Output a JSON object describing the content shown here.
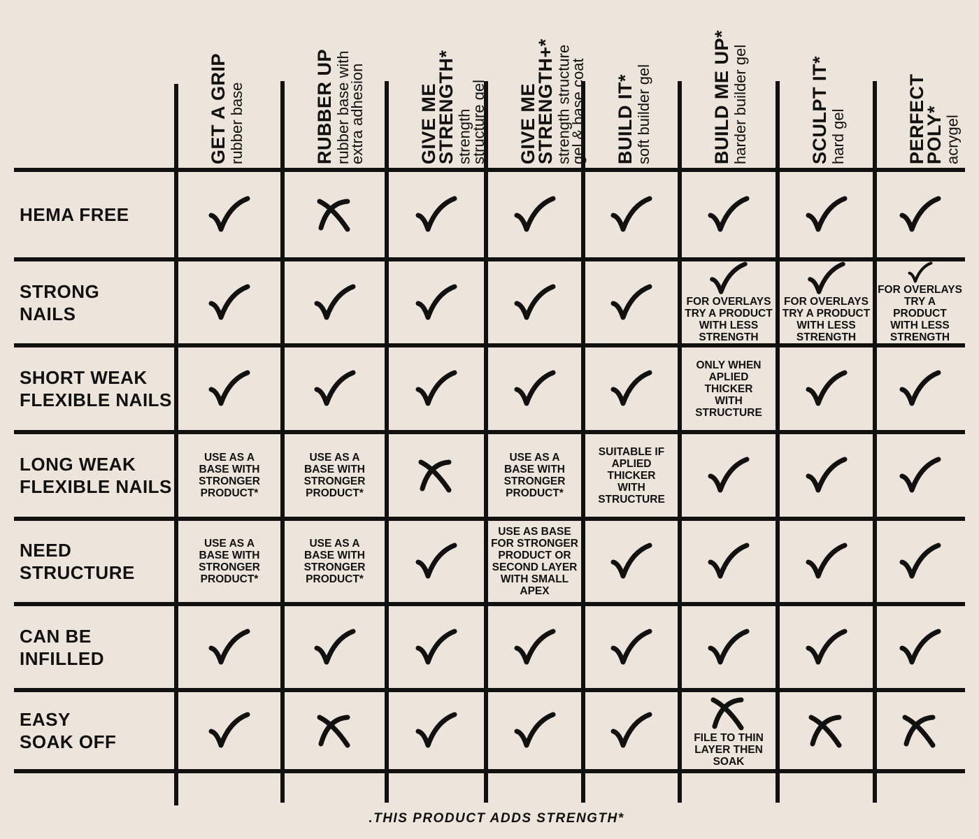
{
  "columns": [
    {
      "name": [
        "GET A GRIP"
      ],
      "description": [
        "rubber base"
      ]
    },
    {
      "name": [
        "RUBBER UP"
      ],
      "description": [
        "rubber base with",
        "extra adhesion"
      ]
    },
    {
      "name": [
        "GIVE ME",
        "STRENGTH*"
      ],
      "description": [
        "strength",
        "structure gel"
      ]
    },
    {
      "name": [
        "GIVE ME",
        "STRENGTH+*"
      ],
      "description": [
        "strength structure",
        "gel & base coat"
      ]
    },
    {
      "name": [
        "BUILD IT*"
      ],
      "description": [
        "soft builder gel"
      ]
    },
    {
      "name": [
        "BUILD ME UP*"
      ],
      "description": [
        "harder builder gel"
      ]
    },
    {
      "name": [
        "SCULPT IT*"
      ],
      "description": [
        "hard gel"
      ]
    },
    {
      "name": [
        "PERFECT",
        "POLY*"
      ],
      "description": [
        "acrygel"
      ]
    }
  ],
  "rows": [
    {
      "label": [
        "HEMA FREE"
      ],
      "cells": [
        {
          "mark": "check"
        },
        {
          "mark": "cross"
        },
        {
          "mark": "check"
        },
        {
          "mark": "check"
        },
        {
          "mark": "check"
        },
        {
          "mark": "check"
        },
        {
          "mark": "check"
        },
        {
          "mark": "check"
        }
      ]
    },
    {
      "label": [
        "STRONG",
        "NAILS"
      ],
      "cells": [
        {
          "mark": "check"
        },
        {
          "mark": "check"
        },
        {
          "mark": "check"
        },
        {
          "mark": "check"
        },
        {
          "mark": "check"
        },
        {
          "mark": "check",
          "note": [
            "FOR OVERLAYS",
            "TRY A PRODUCT",
            "WITH LESS",
            "STRENGTH"
          ]
        },
        {
          "mark": "check",
          "note": [
            "FOR OVERLAYS",
            "TRY A PRODUCT",
            "WITH LESS",
            "STRENGTH"
          ]
        },
        {
          "mark": "check",
          "note": [
            "FOR OVERLAYS",
            "TRY A PRODUCT",
            "WITH LESS",
            "STRENGTH"
          ]
        }
      ]
    },
    {
      "label": [
        "SHORT WEAK",
        "FLEXIBLE NAILS"
      ],
      "cells": [
        {
          "mark": "check"
        },
        {
          "mark": "check"
        },
        {
          "mark": "check"
        },
        {
          "mark": "check"
        },
        {
          "mark": "check"
        },
        {
          "note": [
            "ONLY WHEN",
            "APLIED",
            "THICKER",
            "WITH",
            "STRUCTURE"
          ]
        },
        {
          "mark": "check"
        },
        {
          "mark": "check"
        }
      ]
    },
    {
      "label": [
        "LONG WEAK",
        "FLEXIBLE NAILS"
      ],
      "cells": [
        {
          "note": [
            "USE AS A",
            "BASE WITH",
            "STRONGER",
            "PRODUCT*"
          ]
        },
        {
          "note": [
            "USE AS A",
            "BASE WITH",
            "STRONGER",
            "PRODUCT*"
          ]
        },
        {
          "mark": "cross"
        },
        {
          "note": [
            "USE AS A",
            "BASE WITH",
            "STRONGER",
            "PRODUCT*"
          ]
        },
        {
          "note": [
            "SUITABLE IF",
            "APLIED",
            "THICKER",
            "WITH",
            "STRUCTURE"
          ]
        },
        {
          "mark": "check"
        },
        {
          "mark": "check"
        },
        {
          "mark": "check"
        }
      ]
    },
    {
      "label": [
        "NEED",
        "STRUCTURE"
      ],
      "cells": [
        {
          "note": [
            "USE AS A",
            "BASE WITH",
            "STRONGER",
            "PRODUCT*"
          ]
        },
        {
          "note": [
            "USE AS A",
            "BASE WITH",
            "STRONGER",
            "PRODUCT*"
          ]
        },
        {
          "mark": "check"
        },
        {
          "note": [
            "USE AS BASE",
            "FOR STRONGER",
            "PRODUCT OR",
            "SECOND LAYER",
            "WITH SMALL",
            "APEX"
          ]
        },
        {
          "mark": "check"
        },
        {
          "mark": "check"
        },
        {
          "mark": "check"
        },
        {
          "mark": "check"
        }
      ]
    },
    {
      "label": [
        "CAN BE",
        "INFILLED"
      ],
      "cells": [
        {
          "mark": "check"
        },
        {
          "mark": "check"
        },
        {
          "mark": "check"
        },
        {
          "mark": "check"
        },
        {
          "mark": "check"
        },
        {
          "mark": "check"
        },
        {
          "mark": "check"
        },
        {
          "mark": "check"
        }
      ]
    },
    {
      "label": [
        "EASY",
        "SOAK OFF"
      ],
      "cells": [
        {
          "mark": "check"
        },
        {
          "mark": "cross"
        },
        {
          "mark": "check"
        },
        {
          "mark": "check"
        },
        {
          "mark": "check"
        },
        {
          "mark": "cross",
          "note": [
            "FILE TO THIN",
            "LAYER THEN",
            "SOAK"
          ]
        },
        {
          "mark": "cross"
        },
        {
          "mark": "cross"
        }
      ]
    }
  ],
  "footer": ".THIS PRODUCT ADDS STRENGTH*"
}
